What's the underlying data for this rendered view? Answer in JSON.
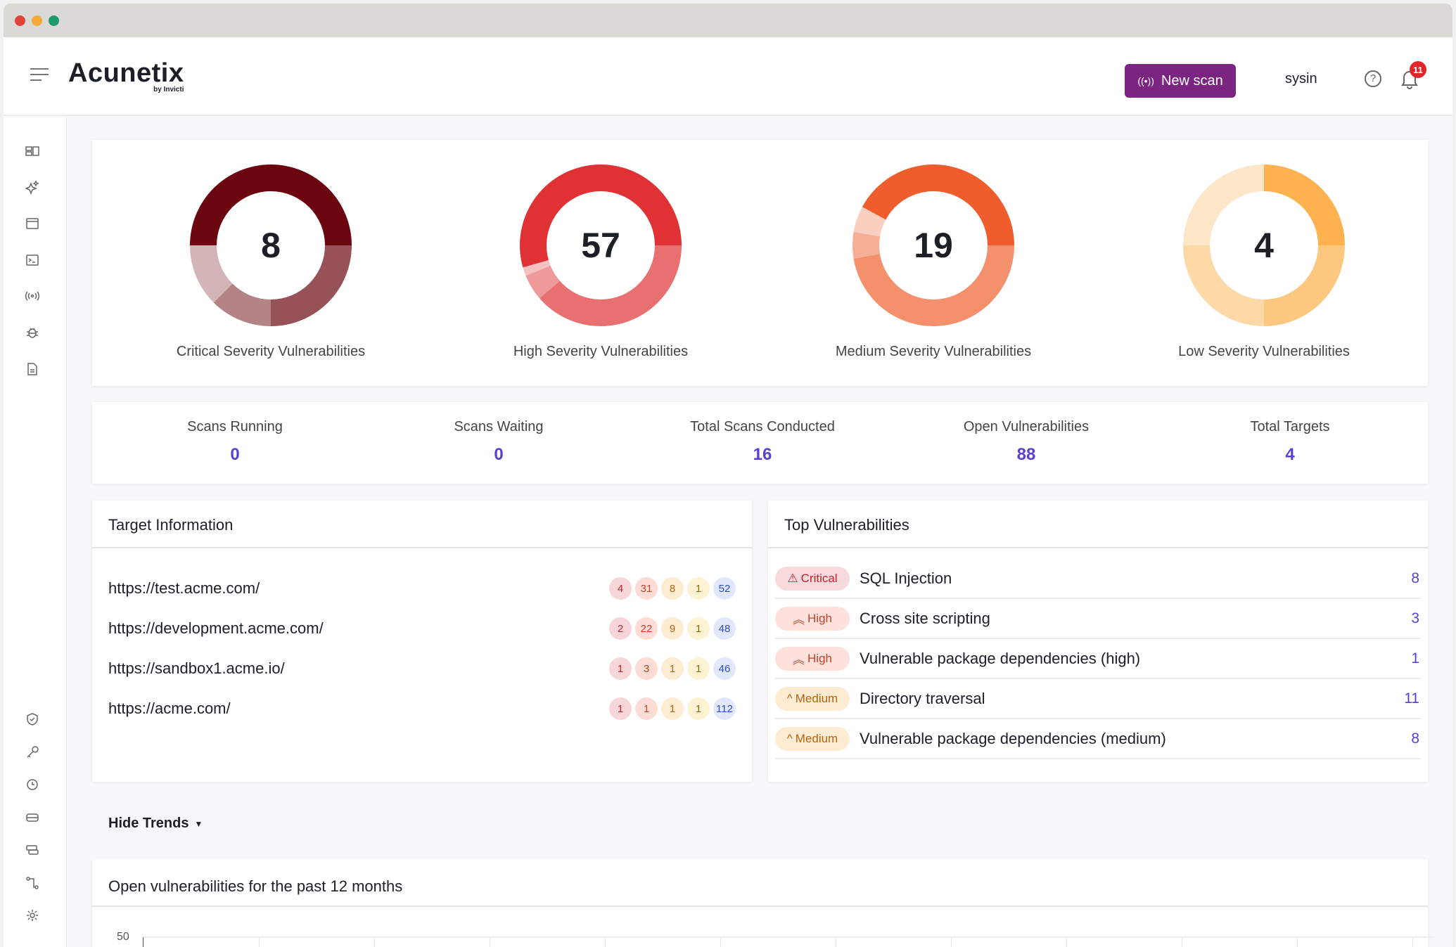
{
  "window": {
    "controls": {
      "close": "#e0443a",
      "minimize": "#f5a93a",
      "maximize": "#1f9a6b"
    }
  },
  "header": {
    "logo": "Acunetix",
    "logo_sub": "by Invicti",
    "new_scan": "New scan",
    "user": "sysin",
    "notifications": "11",
    "accent": "#7b2481"
  },
  "sidebar": {
    "top_icons": [
      "dashboard-icon",
      "ai-sparkle-icon",
      "targets-browser-icon",
      "terminal-icon",
      "scans-signal-icon",
      "bug-icon",
      "report-document-icon"
    ],
    "bottom_icons": [
      "shield-icon",
      "key-icon",
      "clock-icon",
      "server-icon",
      "database-icon",
      "workflow-icon",
      "gear-icon"
    ]
  },
  "severity": [
    {
      "count": "8",
      "label": "Critical Severity Vulnerabilities",
      "segments": [
        2,
        1,
        1,
        4
      ],
      "colors": [
        "#975258",
        "#b48386",
        "#d4b5b7",
        "#6b0510"
      ]
    },
    {
      "count": "57",
      "label": "High Severity Vulnerabilities",
      "segments": [
        22,
        3,
        1,
        31
      ],
      "colors": [
        "#e87070",
        "#ef9a9a",
        "#f5c0c0",
        "#e03234"
      ]
    },
    {
      "count": "19",
      "label": "Medium Severity Vulnerabilities",
      "segments": [
        9,
        1,
        1,
        8
      ],
      "colors": [
        "#f4906c",
        "#f6ae94",
        "#fbcfc0",
        "#f05d2c"
      ]
    },
    {
      "count": "4",
      "label": "Low Severity Vulnerabilities",
      "segments": [
        1,
        1,
        1,
        1
      ],
      "colors": [
        "#fcc880",
        "#fdd9a8",
        "#fee6c8",
        "#fdb14f"
      ]
    }
  ],
  "stats": [
    {
      "label": "Scans Running",
      "value": "0"
    },
    {
      "label": "Scans Waiting",
      "value": "0"
    },
    {
      "label": "Total Scans Conducted",
      "value": "16"
    },
    {
      "label": "Open Vulnerabilities",
      "value": "88"
    },
    {
      "label": "Total Targets",
      "value": "4"
    }
  ],
  "targets": {
    "title": "Target Information",
    "rows": [
      {
        "url": "https://test.acme.com/",
        "counts": [
          "4",
          "31",
          "8",
          "1",
          "52"
        ]
      },
      {
        "url": "https://development.acme.com/",
        "counts": [
          "2",
          "22",
          "9",
          "1",
          "48"
        ]
      },
      {
        "url": "https://sandbox1.acme.io/",
        "counts": [
          "1",
          "3",
          "1",
          "1",
          "46"
        ]
      },
      {
        "url": "https://acme.com/",
        "counts": [
          "1",
          "1",
          "1",
          "1",
          "112"
        ]
      }
    ]
  },
  "top_vulns": {
    "title": "Top Vulnerabilities",
    "rows": [
      {
        "severity": "Critical",
        "name": "SQL Injection",
        "count": "8"
      },
      {
        "severity": "High",
        "name": "Cross site scripting",
        "count": "3"
      },
      {
        "severity": "High",
        "name": "Vulnerable package dependencies (high)",
        "count": "1"
      },
      {
        "severity": "Medium",
        "name": "Directory traversal",
        "count": "11"
      },
      {
        "severity": "Medium",
        "name": "Vulnerable package dependencies (medium)",
        "count": "8"
      }
    ]
  },
  "trends": {
    "toggle": "Hide Trends",
    "title": "Open vulnerabilities for the past 12 months",
    "y_ticks": [
      "50"
    ]
  }
}
